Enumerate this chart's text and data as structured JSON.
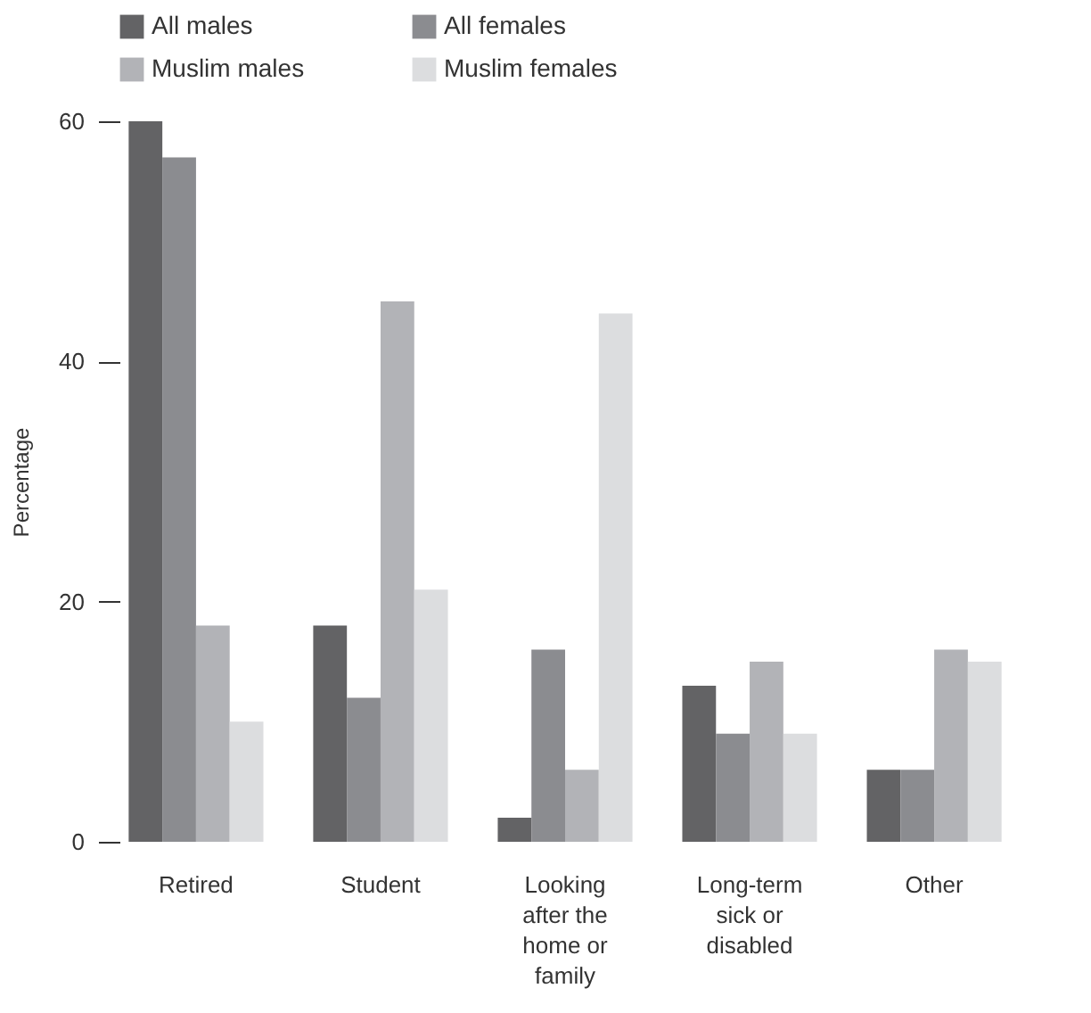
{
  "chart_data": {
    "type": "bar",
    "ylabel": "Percentage",
    "categories": [
      "Retired",
      "Student",
      "Looking after the home or family",
      "Long-term sick or disabled",
      "Other"
    ],
    "series": [
      {
        "name": "All males",
        "color": "#636365",
        "values": [
          60,
          18,
          2,
          13,
          6
        ]
      },
      {
        "name": "All females",
        "color": "#8b8c90",
        "values": [
          57,
          12,
          16,
          9,
          6
        ]
      },
      {
        "name": "Muslim males",
        "color": "#b2b3b7",
        "values": [
          18,
          45,
          6,
          15,
          16
        ]
      },
      {
        "name": "Muslim females",
        "color": "#dcdddf",
        "values": [
          10,
          21,
          44,
          9,
          15
        ]
      }
    ],
    "ylim": [
      0,
      60
    ],
    "yticks": [
      0,
      20,
      40,
      60
    ],
    "grid": false,
    "legend": "top left"
  }
}
